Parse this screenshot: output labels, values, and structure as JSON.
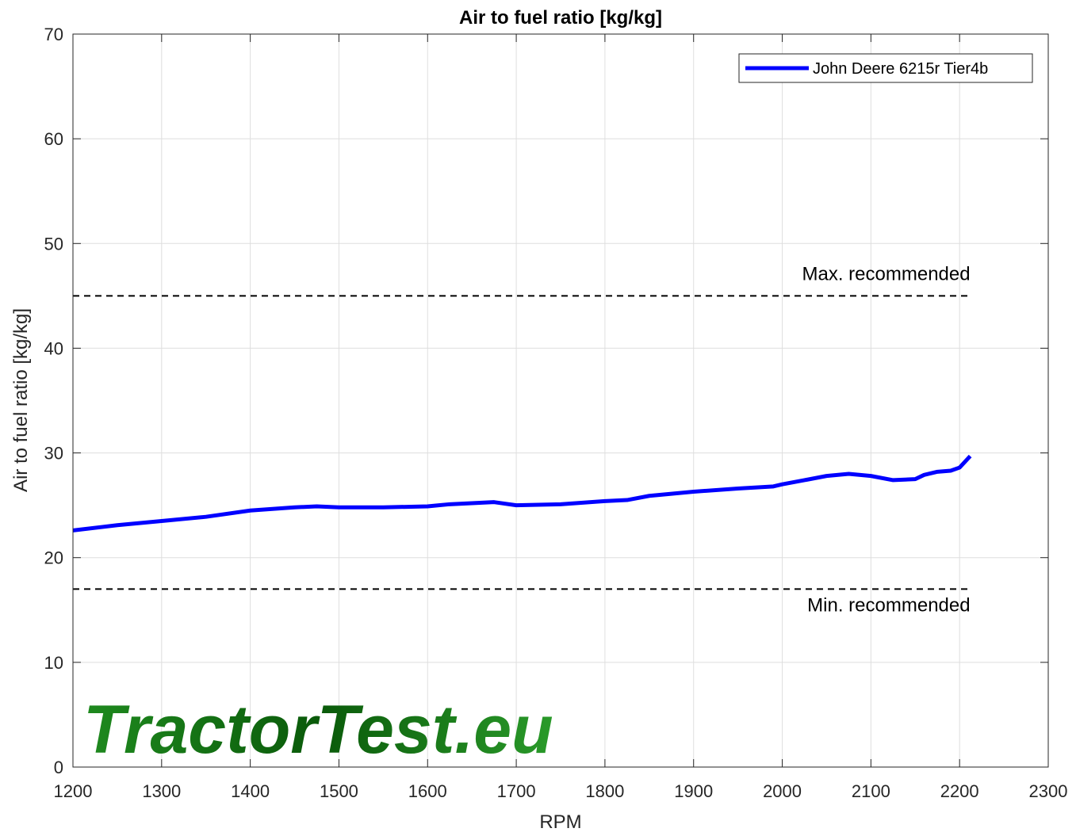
{
  "chart_data": {
    "type": "line",
    "title": "Air to fuel ratio [kg/kg]",
    "xlabel": "RPM",
    "ylabel": "Air to fuel ratio [kg/kg]",
    "x": [
      1200,
      1250,
      1300,
      1350,
      1400,
      1450,
      1475,
      1500,
      1550,
      1600,
      1625,
      1650,
      1675,
      1700,
      1750,
      1800,
      1825,
      1850,
      1900,
      1950,
      1990,
      2000,
      2025,
      2050,
      2075,
      2100,
      2125,
      2150,
      2160,
      2175,
      2190,
      2200,
      2212
    ],
    "series": [
      {
        "name": "John Deere 6215r Tier4b",
        "color": "#0000ff",
        "values": [
          22.6,
          23.1,
          23.5,
          23.9,
          24.5,
          24.8,
          24.9,
          24.8,
          24.8,
          24.9,
          25.1,
          25.2,
          25.3,
          25.0,
          25.1,
          25.4,
          25.5,
          25.9,
          26.3,
          26.6,
          26.8,
          27.0,
          27.4,
          27.8,
          28.0,
          27.8,
          27.4,
          27.5,
          27.9,
          28.2,
          28.3,
          28.6,
          29.7
        ]
      }
    ],
    "reference_lines": [
      {
        "value": 45,
        "label": "Max. recommended"
      },
      {
        "value": 17,
        "label": "Min. recommended"
      }
    ],
    "watermark": "TractorTest.eu",
    "xlim": [
      1200,
      2300
    ],
    "xticks": [
      1200,
      1300,
      1400,
      1500,
      1600,
      1700,
      1800,
      1900,
      2000,
      2100,
      2200,
      2300
    ],
    "ylim": [
      0,
      70
    ],
    "yticks": [
      0,
      10,
      20,
      30,
      40,
      50,
      60,
      70
    ],
    "grid": true,
    "legend": "upper right"
  }
}
